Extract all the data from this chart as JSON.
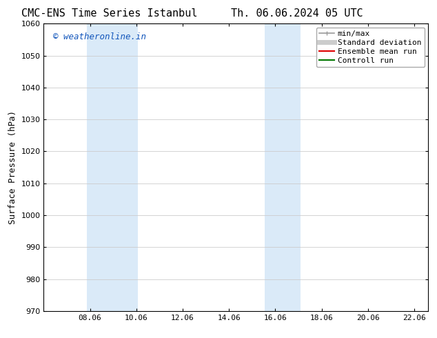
{
  "title_left": "CMC-ENS Time Series Istanbul",
  "title_right": "Th. 06.06.2024 05 UTC",
  "ylabel": "Surface Pressure (hPa)",
  "ylim": [
    970,
    1060
  ],
  "yticks": [
    970,
    980,
    990,
    1000,
    1010,
    1020,
    1030,
    1040,
    1050,
    1060
  ],
  "xlim_start": 6.0,
  "xlim_end": 22.6,
  "xtick_labels": [
    "08.06",
    "10.06",
    "12.06",
    "14.06",
    "16.06",
    "18.06",
    "20.06",
    "22.06"
  ],
  "xtick_positions": [
    8.0,
    10.0,
    12.0,
    14.0,
    16.0,
    18.0,
    20.0,
    22.0
  ],
  "shaded_bands": [
    {
      "x_start": 7.85,
      "x_end": 10.05
    },
    {
      "x_start": 15.55,
      "x_end": 17.1
    }
  ],
  "shade_color": "#daeaf8",
  "watermark_text": "© weatheronline.in",
  "watermark_color": "#1155bb",
  "legend_entries": [
    {
      "label": "min/max",
      "color": "#999999",
      "lw": 1.2,
      "style": "line_with_caps"
    },
    {
      "label": "Standard deviation",
      "color": "#cccccc",
      "lw": 5,
      "style": "line"
    },
    {
      "label": "Ensemble mean run",
      "color": "#dd0000",
      "lw": 1.5,
      "style": "line"
    },
    {
      "label": "Controll run",
      "color": "#007700",
      "lw": 1.5,
      "style": "line"
    }
  ],
  "bg_color": "#ffffff",
  "grid_color": "#cccccc",
  "title_fontsize": 11,
  "watermark_fontsize": 9,
  "axis_label_fontsize": 9,
  "tick_fontsize": 8,
  "legend_fontsize": 8
}
